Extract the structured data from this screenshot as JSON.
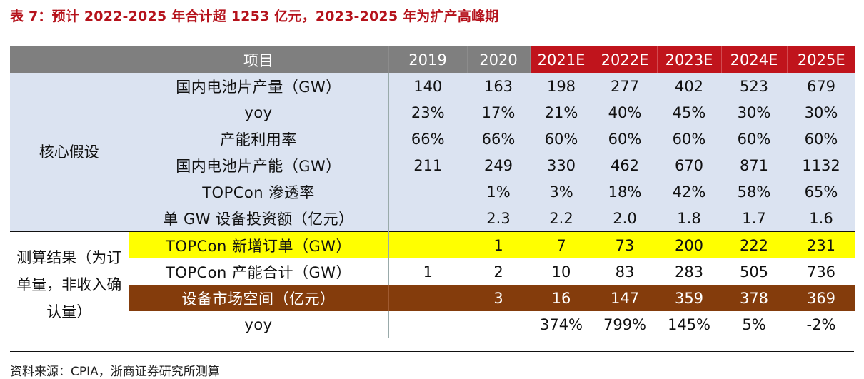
{
  "title": "表 7：预计 2022-2025 年合计超 1253 亿元，2023-2025 年为扩产高峰期",
  "header": {
    "item": "项目",
    "years": [
      "2019",
      "2020",
      "2021E",
      "2022E",
      "2023E",
      "2024E",
      "2025E"
    ]
  },
  "sections": [
    {
      "category": "核心假设",
      "rows": [
        {
          "label": "国内电池片产量（GW）",
          "values": [
            "140",
            "163",
            "198",
            "277",
            "402",
            "523",
            "679"
          ]
        },
        {
          "label": "yoy",
          "values": [
            "23%",
            "17%",
            "21%",
            "40%",
            "45%",
            "30%",
            "30%"
          ]
        },
        {
          "label": "产能利用率",
          "values": [
            "66%",
            "66%",
            "60%",
            "60%",
            "60%",
            "60%",
            "60%"
          ]
        },
        {
          "label": "国内电池片产能（GW）",
          "values": [
            "211",
            "249",
            "330",
            "462",
            "670",
            "871",
            "1132"
          ]
        },
        {
          "label": "TOPCon 渗透率",
          "values": [
            "",
            "1%",
            "3%",
            "18%",
            "42%",
            "58%",
            "65%"
          ]
        },
        {
          "label": "单 GW 设备投资额（亿元）",
          "values": [
            "",
            "2.3",
            "2.2",
            "2.0",
            "1.8",
            "1.7",
            "1.6"
          ]
        }
      ]
    },
    {
      "category": "测算结果（为订单量，非收入确认量）",
      "rows": [
        {
          "label": "TOPCon 新增订单（GW）",
          "values": [
            "",
            "1",
            "7",
            "73",
            "200",
            "222",
            "231"
          ]
        },
        {
          "label": "TOPCon 产能合计（GW）",
          "values": [
            "1",
            "2",
            "10",
            "83",
            "283",
            "505",
            "736"
          ]
        },
        {
          "label": "设备市场空间（亿元）",
          "values": [
            "",
            "3",
            "16",
            "147",
            "359",
            "378",
            "369"
          ]
        },
        {
          "label": "yoy",
          "values": [
            "",
            "",
            "374%",
            "799%",
            "145%",
            "5%",
            "-2%"
          ]
        }
      ]
    }
  ],
  "source": "资料来源：CPIA，浙商证券研究所测算",
  "colors": {
    "header_gray": "#7f7f7f",
    "estimate_red": "#c0141c",
    "assumption_blue": "#dbe3f1",
    "highlight_yellow": "#ffff00",
    "market_brown": "#843c0c"
  }
}
